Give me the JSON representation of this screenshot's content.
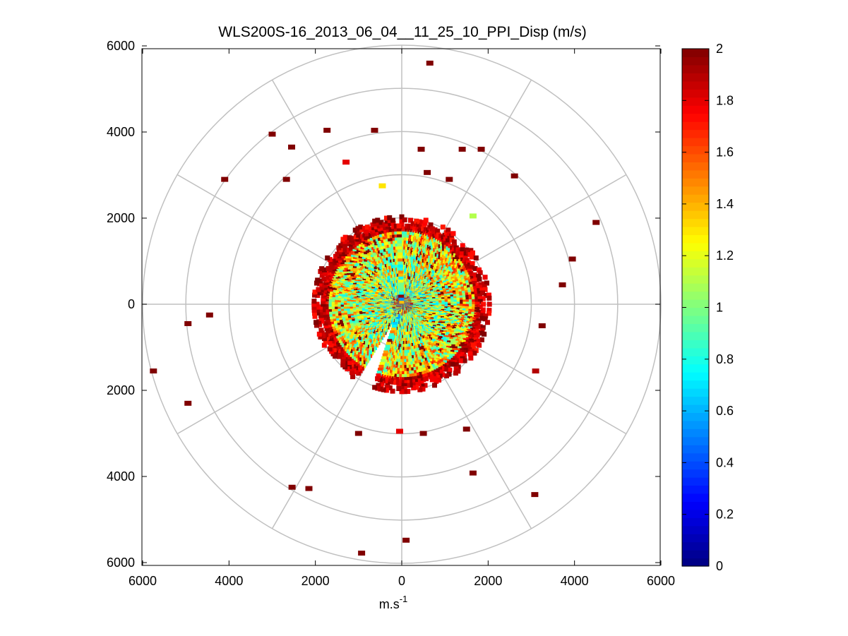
{
  "chart_data": {
    "type": "scatter",
    "subtype": "polar-ppi",
    "title": "WLS200S-16_2013_06_04__11_25_10_PPI_Disp (m/s)",
    "xlabel_base": "m.s",
    "xlabel_exp": "-1",
    "ylabel": "",
    "xlim": [
      -6000,
      6000
    ],
    "ylim": [
      -6000,
      6000
    ],
    "x_ticks": [
      -6000,
      -4000,
      -2000,
      0,
      2000,
      4000,
      6000
    ],
    "x_tick_labels": [
      "6000",
      "4000",
      "2000",
      "0",
      "2000",
      "4000",
      "6000"
    ],
    "y_ticks": [
      6000,
      4000,
      2000,
      0,
      -2000,
      -4000,
      -6000
    ],
    "y_tick_labels": [
      "6000",
      "4000",
      "2000",
      "0",
      "2000",
      "4000",
      "6000"
    ],
    "polar_rings": [
      1000,
      2000,
      3000,
      4000,
      5000,
      6000
    ],
    "polar_spokes_deg": [
      0,
      30,
      60,
      90,
      120,
      150,
      180,
      210,
      240,
      270,
      300,
      330
    ],
    "grid": true,
    "colorbar": {
      "min": 0,
      "max": 2,
      "ticks": [
        0,
        0.2,
        0.4,
        0.6,
        0.8,
        1,
        1.2,
        1.4,
        1.6,
        1.8,
        2
      ],
      "tick_labels": [
        "0",
        "0.2",
        "0.4",
        "0.6",
        "0.8",
        "1",
        "1.2",
        "1.4",
        "1.6",
        "1.8",
        "2"
      ],
      "colormap": "jet"
    },
    "scatter_points": [
      {
        "x": 650,
        "y": 5600,
        "v": 2.0
      },
      {
        "x": -630,
        "y": 4040,
        "v": 2.0
      },
      {
        "x": -1730,
        "y": 4040,
        "v": 2.0
      },
      {
        "x": -3000,
        "y": 3950,
        "v": 2.0
      },
      {
        "x": -2550,
        "y": 3650,
        "v": 2.0
      },
      {
        "x": -1290,
        "y": 3300,
        "v": 1.8
      },
      {
        "x": 450,
        "y": 3600,
        "v": 2.0
      },
      {
        "x": 1400,
        "y": 3600,
        "v": 2.0
      },
      {
        "x": 1840,
        "y": 3600,
        "v": 2.0
      },
      {
        "x": 590,
        "y": 3060,
        "v": 2.0
      },
      {
        "x": 1100,
        "y": 2900,
        "v": 2.0
      },
      {
        "x": -4100,
        "y": 2900,
        "v": 2.0
      },
      {
        "x": -2670,
        "y": 2900,
        "v": 2.0
      },
      {
        "x": 2610,
        "y": 2980,
        "v": 2.0
      },
      {
        "x": 4500,
        "y": 1900,
        "v": 2.0
      },
      {
        "x": 3950,
        "y": 1050,
        "v": 2.0
      },
      {
        "x": 3720,
        "y": 450,
        "v": 2.0
      },
      {
        "x": -4450,
        "y": -250,
        "v": 2.0
      },
      {
        "x": -4950,
        "y": -450,
        "v": 2.0
      },
      {
        "x": -5750,
        "y": -1550,
        "v": 2.0
      },
      {
        "x": -4950,
        "y": -2300,
        "v": 2.0
      },
      {
        "x": -2540,
        "y": -4250,
        "v": 2.0
      },
      {
        "x": -2150,
        "y": -4280,
        "v": 2.0
      },
      {
        "x": -930,
        "y": -5780,
        "v": 2.0
      },
      {
        "x": 100,
        "y": -5480,
        "v": 2.0
      },
      {
        "x": 1650,
        "y": -3920,
        "v": 2.0
      },
      {
        "x": 3080,
        "y": -4420,
        "v": 2.0
      },
      {
        "x": 3100,
        "y": -1550,
        "v": 1.9
      },
      {
        "x": 3250,
        "y": -500,
        "v": 2.0
      },
      {
        "x": -450,
        "y": 2750,
        "v": 1.3
      },
      {
        "x": 1650,
        "y": 2050,
        "v": 1.1
      },
      {
        "x": -1000,
        "y": -3000,
        "v": 2.0
      },
      {
        "x": -50,
        "y": -2950,
        "v": 1.8
      },
      {
        "x": 500,
        "y": -3000,
        "v": 2.0
      },
      {
        "x": 1500,
        "y": -2900,
        "v": 2.0
      }
    ],
    "data_description": "Dense cloud of radial-velocity dispersion cells concentrated within ~2000 m of the center; inner area values ~0.5-1.3 m/s, ring near 1800-2000 m values ~2 m/s; sparse outliers out to ~6000 m mostly at 2 m/s; blank wedge toward ~200 deg azimuth."
  }
}
